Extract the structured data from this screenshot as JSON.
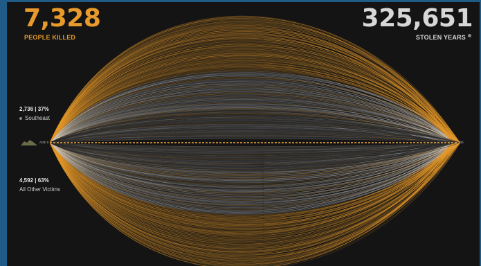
{
  "header": {
    "people_killed_value": "7,328",
    "people_killed_label": "PEOPLE KILLED",
    "stolen_years_value": "325,651",
    "stolen_years_label": "STOLEN YEARS"
  },
  "groups": [
    {
      "stat": "2,736 | 37%",
      "name": "Southeast",
      "color": "#e89a2b"
    },
    {
      "stat": "4,592 | 63%",
      "name": "All Other Victims",
      "color": "#cfcfcf"
    }
  ],
  "axis": {
    "start_label": "AGE 0",
    "end_label": "100"
  },
  "colors": {
    "accent_orange": "#e89a2b",
    "victims_gray": "#cfcfcf",
    "background": "#141414",
    "frame_blue": "#1f5b86"
  },
  "icons": {
    "info": "info-icon",
    "silhouette": "age-distribution-icon"
  },
  "chart_data": {
    "type": "arc-flow",
    "description_printed": "",
    "total_people_killed": 7328,
    "total_stolen_years": 325651,
    "series": [
      {
        "name": "Southeast",
        "count": 2736,
        "percent": 37,
        "position": "upper"
      },
      {
        "name": "All Other Victims",
        "count": 4592,
        "percent": 63,
        "position": "lower"
      }
    ],
    "x_axis": {
      "min_age": 0,
      "max_age": 100
    },
    "grid": false,
    "legend": "left"
  }
}
